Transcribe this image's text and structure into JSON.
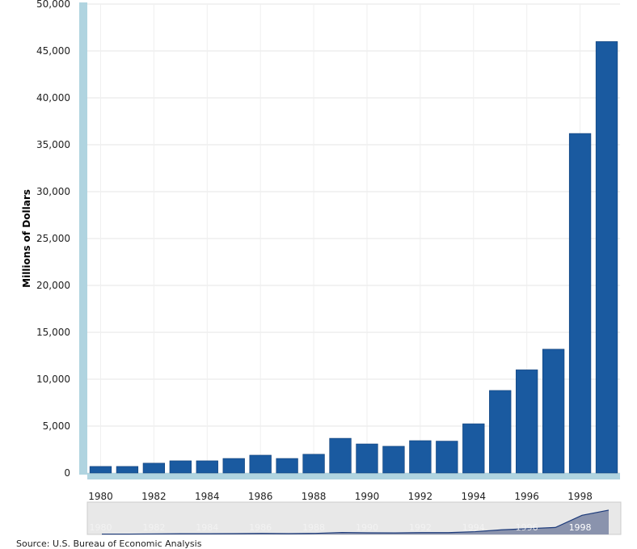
{
  "chart_data": {
    "type": "bar",
    "ylabel": "Millions of Dollars",
    "xlabel": "",
    "title": "",
    "categories": [
      "1980",
      "1981",
      "1982",
      "1983",
      "1984",
      "1985",
      "1986",
      "1987",
      "1988",
      "1989",
      "1990",
      "1991",
      "1992",
      "1993",
      "1994",
      "1995",
      "1996",
      "1997",
      "1998",
      "1999"
    ],
    "values": [
      700,
      700,
      1050,
      1300,
      1300,
      1550,
      1900,
      1550,
      2000,
      3700,
      3100,
      2850,
      3450,
      3400,
      5250,
      8800,
      11000,
      13200,
      36200,
      46000
    ],
    "ylim": [
      0,
      50000
    ],
    "yticks": [
      0,
      5000,
      10000,
      15000,
      20000,
      25000,
      30000,
      35000,
      40000,
      45000,
      50000
    ],
    "ytick_labels": [
      "0",
      "5,000",
      "10,000",
      "15,000",
      "20,000",
      "25,000",
      "30,000",
      "35,000",
      "40,000",
      "45,000",
      "50,000"
    ],
    "xtick_labels": [
      "1980",
      "1982",
      "1984",
      "1986",
      "1988",
      "1990",
      "1992",
      "1994",
      "1996",
      "1998"
    ],
    "grid": true,
    "bar_color": "#1a5aa0",
    "axis_accent_color": "#b0d4e0"
  },
  "navigator": {
    "labels": [
      "1980",
      "1982",
      "1984",
      "1986",
      "1988",
      "1990",
      "1992",
      "1994",
      "1996",
      "1998"
    ],
    "highlighted_label": "1998"
  },
  "source_text": "Source: U.S. Bureau of Economic Analysis"
}
